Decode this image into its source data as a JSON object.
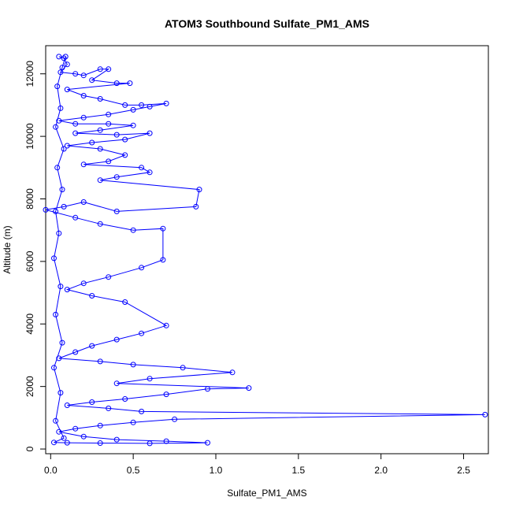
{
  "chart_data": {
    "type": "line",
    "title": "ATOM3 Southbound Sulfate_PM1_AMS",
    "xlabel": "Sulfate_PM1_AMS",
    "ylabel": "Altitude (m)",
    "xlim": [
      -0.03,
      2.65
    ],
    "ylim": [
      -150,
      12900
    ],
    "x_ticks": [
      0.0,
      0.5,
      1.0,
      1.5,
      2.0,
      2.5
    ],
    "x_tick_labels": [
      "0.0",
      "0.5",
      "1.0",
      "1.5",
      "2.0",
      "2.5"
    ],
    "y_ticks": [
      0,
      2000,
      4000,
      6000,
      8000,
      10000,
      12000
    ],
    "y_tick_labels": [
      "0",
      "2000",
      "4000",
      "6000",
      "8000",
      "10000",
      "12000"
    ],
    "grid": false,
    "legend": "none",
    "series": [
      {
        "color": "#0000ff",
        "marker": "open-circle",
        "points": [
          [
            0.05,
            12550
          ],
          [
            0.08,
            12500
          ],
          [
            0.1,
            12300
          ],
          [
            0.06,
            12050
          ],
          [
            0.15,
            12000
          ],
          [
            0.2,
            11950
          ],
          [
            0.3,
            12150
          ],
          [
            0.35,
            12150
          ],
          [
            0.25,
            11800
          ],
          [
            0.4,
            11700
          ],
          [
            0.48,
            11700
          ],
          [
            0.1,
            11500
          ],
          [
            0.2,
            11300
          ],
          [
            0.3,
            11200
          ],
          [
            0.45,
            11000
          ],
          [
            0.55,
            11000
          ],
          [
            0.7,
            11050
          ],
          [
            0.6,
            10950
          ],
          [
            0.5,
            10850
          ],
          [
            0.35,
            10700
          ],
          [
            0.2,
            10600
          ],
          [
            0.05,
            10500
          ],
          [
            0.15,
            10400
          ],
          [
            0.35,
            10400
          ],
          [
            0.5,
            10350
          ],
          [
            0.3,
            10200
          ],
          [
            0.15,
            10100
          ],
          [
            0.4,
            10050
          ],
          [
            0.6,
            10100
          ],
          [
            0.45,
            9900
          ],
          [
            0.25,
            9800
          ],
          [
            0.1,
            9700
          ],
          [
            0.3,
            9600
          ],
          [
            0.45,
            9400
          ],
          [
            0.35,
            9200
          ],
          [
            0.2,
            9100
          ],
          [
            0.55,
            9000
          ],
          [
            0.6,
            8850
          ],
          [
            0.4,
            8700
          ],
          [
            0.3,
            8600
          ],
          [
            0.9,
            8300
          ],
          [
            0.88,
            7750
          ],
          [
            0.4,
            7600
          ],
          [
            0.2,
            7900
          ],
          [
            0.08,
            7750
          ],
          [
            -0.03,
            7650
          ],
          [
            0.15,
            7400
          ],
          [
            0.3,
            7200
          ],
          [
            0.5,
            7000
          ],
          [
            0.68,
            7050
          ],
          [
            0.68,
            6050
          ],
          [
            0.55,
            5800
          ],
          [
            0.35,
            5500
          ],
          [
            0.2,
            5300
          ],
          [
            0.1,
            5100
          ],
          [
            0.25,
            4900
          ],
          [
            0.45,
            4700
          ],
          [
            0.7,
            3950
          ],
          [
            0.55,
            3700
          ],
          [
            0.4,
            3500
          ],
          [
            0.25,
            3300
          ],
          [
            0.15,
            3100
          ],
          [
            0.05,
            2900
          ],
          [
            0.3,
            2800
          ],
          [
            0.5,
            2700
          ],
          [
            0.8,
            2600
          ],
          [
            1.1,
            2450
          ],
          [
            0.6,
            2250
          ],
          [
            0.4,
            2100
          ],
          [
            1.2,
            1950
          ],
          [
            0.95,
            1920
          ],
          [
            0.7,
            1750
          ],
          [
            0.45,
            1600
          ],
          [
            0.25,
            1500
          ],
          [
            0.1,
            1400
          ],
          [
            0.35,
            1300
          ],
          [
            0.55,
            1200
          ],
          [
            2.63,
            1100
          ],
          [
            0.75,
            950
          ],
          [
            0.5,
            850
          ],
          [
            0.3,
            750
          ],
          [
            0.15,
            650
          ],
          [
            0.05,
            550
          ],
          [
            0.2,
            400
          ],
          [
            0.4,
            300
          ],
          [
            0.7,
            250
          ],
          [
            0.95,
            200
          ],
          [
            0.6,
            180
          ],
          [
            0.3,
            190
          ],
          [
            0.1,
            200
          ],
          [
            0.02,
            210
          ],
          [
            0.08,
            350
          ],
          [
            0.03,
            900
          ],
          [
            0.06,
            1800
          ],
          [
            0.02,
            2600
          ],
          [
            0.07,
            3400
          ],
          [
            0.03,
            4300
          ],
          [
            0.06,
            5200
          ],
          [
            0.02,
            6100
          ],
          [
            0.05,
            6900
          ],
          [
            0.03,
            7600
          ],
          [
            0.07,
            8300
          ],
          [
            0.04,
            9000
          ],
          [
            0.08,
            9600
          ],
          [
            0.03,
            10300
          ],
          [
            0.06,
            10900
          ],
          [
            0.04,
            11600
          ],
          [
            0.07,
            12200
          ],
          [
            0.09,
            12550
          ]
        ]
      }
    ]
  }
}
